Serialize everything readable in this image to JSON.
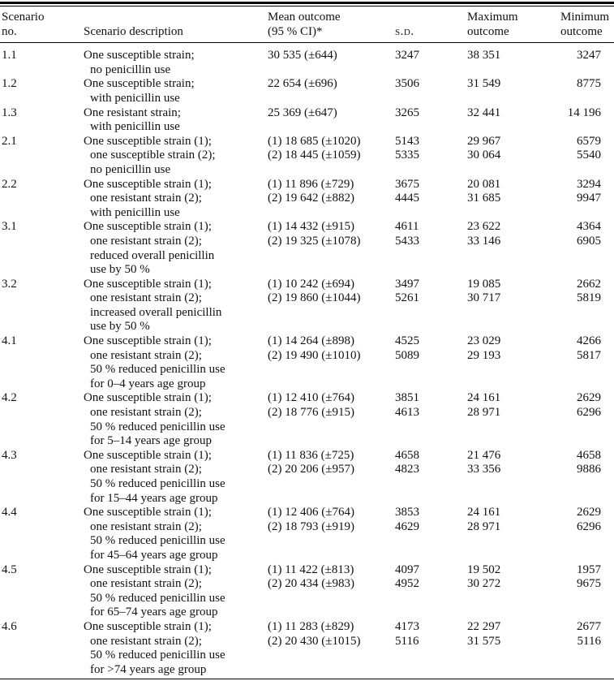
{
  "colors": {
    "text": "#111111",
    "rule": "#000000",
    "background": "#ffffff"
  },
  "table": {
    "headers": {
      "scenario_line1": "Scenario",
      "scenario_line2": "no.",
      "description": "Scenario description",
      "mean_line1": "Mean outcome",
      "mean_line2": "(95 % CI)*",
      "sd": "s.d.",
      "max_line1": "Maximum",
      "max_line2": "outcome",
      "min_line1": "Minimum",
      "min_line2": "outcome"
    },
    "rows": [
      {
        "no": "1.1",
        "description": [
          "One susceptible strain;",
          "no penicillin use"
        ],
        "mean": [
          "30 535 (±644)"
        ],
        "sd": [
          "3247"
        ],
        "max": [
          "38 351"
        ],
        "min": [
          "3247"
        ]
      },
      {
        "no": "1.2",
        "description": [
          "One susceptible strain;",
          "with penicillin use"
        ],
        "mean": [
          "22 654 (±696)"
        ],
        "sd": [
          "3506"
        ],
        "max": [
          "31 549"
        ],
        "min": [
          "8775"
        ]
      },
      {
        "no": "1.3",
        "description": [
          "One resistant strain;",
          "with penicillin use"
        ],
        "mean": [
          "25 369 (±647)"
        ],
        "sd": [
          "3265"
        ],
        "max": [
          "32 441"
        ],
        "min": [
          "14 196"
        ]
      },
      {
        "no": "2.1",
        "description": [
          "One susceptible strain (1);",
          "one susceptible strain (2);",
          "no penicillin use"
        ],
        "mean": [
          "(1) 18 685 (±1020)",
          "(2) 18 445 (±1059)"
        ],
        "sd": [
          "5143",
          "5335"
        ],
        "max": [
          "29 967",
          "30 064"
        ],
        "min": [
          "6579",
          "5540"
        ]
      },
      {
        "no": "2.2",
        "description": [
          "One susceptible strain (1);",
          "one resistant strain (2);",
          "with penicillin use"
        ],
        "mean": [
          "(1) 11 896 (±729)",
          "(2) 19 642 (±882)"
        ],
        "sd": [
          "3675",
          "4445"
        ],
        "max": [
          "20 081",
          "31 685"
        ],
        "min": [
          "3294",
          "9947"
        ]
      },
      {
        "no": "3.1",
        "description": [
          "One susceptible strain (1);",
          "one resistant strain (2);",
          "reduced overall penicillin",
          "use by 50 %"
        ],
        "mean": [
          "(1) 14 432 (±915)",
          "(2) 19 325 (±1078)"
        ],
        "sd": [
          "4611",
          "5433"
        ],
        "max": [
          "23 622",
          "33 146"
        ],
        "min": [
          "4364",
          "6905"
        ]
      },
      {
        "no": "3.2",
        "description": [
          "One susceptible strain (1);",
          "one resistant strain (2);",
          "increased overall penicillin",
          "use by 50 %"
        ],
        "mean": [
          "(1) 10 242 (±694)",
          "(2) 19 860 (±1044)"
        ],
        "sd": [
          "3497",
          "5261"
        ],
        "max": [
          "19 085",
          "30 717"
        ],
        "min": [
          "2662",
          "5819"
        ]
      },
      {
        "no": "4.1",
        "description": [
          "One susceptible strain (1);",
          "one resistant strain (2);",
          "50 % reduced penicillin use",
          "for 0–4 years age group"
        ],
        "mean": [
          "(1) 14 264 (±898)",
          "(2) 19 490 (±1010)"
        ],
        "sd": [
          "4525",
          "5089"
        ],
        "max": [
          "23 029",
          "29 193"
        ],
        "min": [
          "4266",
          "5817"
        ]
      },
      {
        "no": "4.2",
        "description": [
          "One susceptible strain (1);",
          "one resistant strain (2);",
          "50 % reduced penicillin use",
          "for 5–14 years age group"
        ],
        "mean": [
          "(1) 12 410 (±764)",
          "(2) 18 776 (±915)"
        ],
        "sd": [
          "3851",
          "4613"
        ],
        "max": [
          "24 161",
          "28 971"
        ],
        "min": [
          "2629",
          "6296"
        ]
      },
      {
        "no": "4.3",
        "description": [
          "One susceptible strain (1);",
          "one resistant strain (2);",
          "50 % reduced penicillin use",
          "for 15–44 years age group"
        ],
        "mean": [
          "(1) 11 836 (±725)",
          "(2) 20 206 (±957)"
        ],
        "sd": [
          "4658",
          "4823"
        ],
        "max": [
          "21 476",
          "33 356"
        ],
        "min": [
          "4658",
          "9886"
        ]
      },
      {
        "no": "4.4",
        "description": [
          "One susceptible strain (1);",
          "one resistant strain (2);",
          "50 % reduced penicillin use",
          "for 45–64 years age group"
        ],
        "mean": [
          "(1) 12 406 (±764)",
          "(2) 18 793 (±919)"
        ],
        "sd": [
          "3853",
          "4629"
        ],
        "max": [
          "24 161",
          "28 971"
        ],
        "min": [
          "2629",
          "6296"
        ]
      },
      {
        "no": "4.5",
        "description": [
          "One susceptible strain (1);",
          "one resistant strain (2);",
          "50 % reduced penicillin use",
          "for 65–74 years age group"
        ],
        "mean": [
          "(1) 11 422 (±813)",
          "(2) 20 434 (±983)"
        ],
        "sd": [
          "4097",
          "4952"
        ],
        "max": [
          "19 502",
          "30 272"
        ],
        "min": [
          "1957",
          "9675"
        ]
      },
      {
        "no": "4.6",
        "description": [
          "One susceptible strain (1);",
          "one resistant strain (2);",
          "50 % reduced penicillin use",
          "for >74 years age group"
        ],
        "mean": [
          "(1) 11 283 (±829)",
          "(2) 20 430 (±1015)"
        ],
        "sd": [
          "4173",
          "5116"
        ],
        "max": [
          "22 297",
          "31 575"
        ],
        "min": [
          "2677",
          "5116"
        ]
      }
    ]
  }
}
